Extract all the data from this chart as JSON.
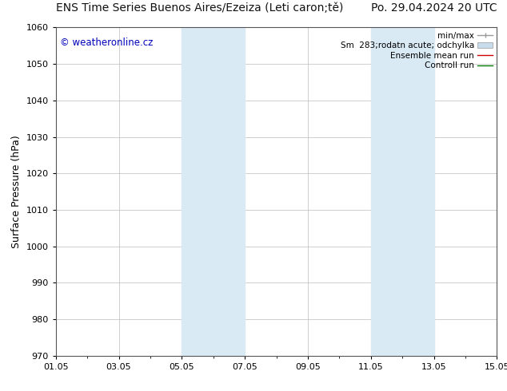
{
  "title_left": "ENS Time Series Buenos Aires/Ezeiza (Leti caron;tě)",
  "title_right": "Po. 29.04.2024 20 UTC",
  "ylabel": "Surface Pressure (hPa)",
  "ylim": [
    970,
    1060
  ],
  "yticks": [
    970,
    980,
    990,
    1000,
    1010,
    1020,
    1030,
    1040,
    1050,
    1060
  ],
  "xlim": [
    0,
    14
  ],
  "xtick_labels": [
    "01.05",
    "03.05",
    "05.05",
    "07.05",
    "09.05",
    "11.05",
    "13.05",
    "15.05"
  ],
  "xtick_positions_days": [
    0,
    2,
    4,
    6,
    8,
    10,
    12,
    14
  ],
  "shaded_bands": [
    {
      "start_day": 4.0,
      "end_day": 6.0
    },
    {
      "start_day": 10.0,
      "end_day": 12.0
    }
  ],
  "shaded_color": "#daeaf5",
  "watermark_text": "© weatheronline.cz",
  "watermark_color": "#0000bb",
  "legend_entries": [
    {
      "label": "min/max",
      "color": "#999999",
      "lw": 1.0,
      "style": "hline"
    },
    {
      "label": "Sm  283;rodatn acute; odchylka",
      "color": "#c8dced",
      "style": "band"
    },
    {
      "label": "Ensemble mean run",
      "color": "#cc0000",
      "lw": 1.0,
      "style": "line"
    },
    {
      "label": "Controll run",
      "color": "#007700",
      "lw": 1.0,
      "style": "line"
    }
  ],
  "bg_color": "#ffffff",
  "grid_color": "#bbbbbb",
  "title_fontsize": 10,
  "tick_fontsize": 8,
  "legend_fontsize": 7.5,
  "ylabel_fontsize": 9
}
